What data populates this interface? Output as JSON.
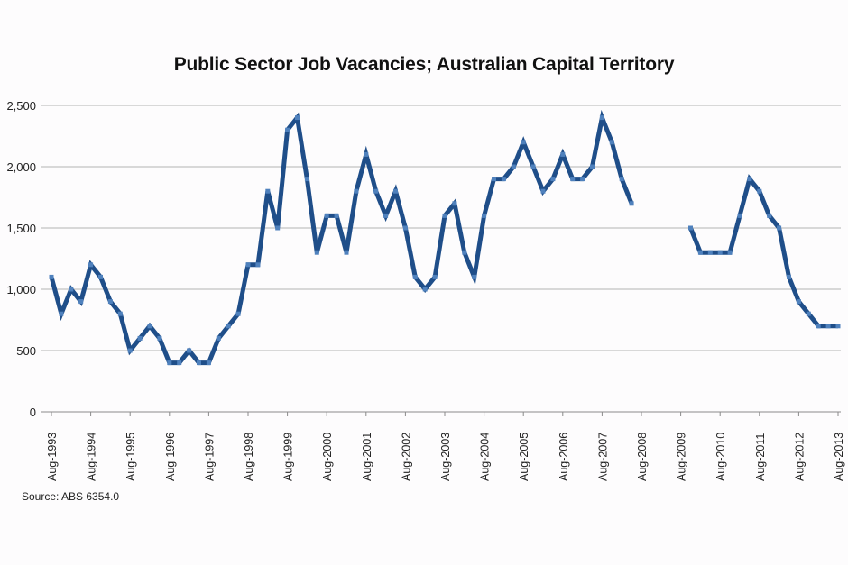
{
  "chart_data": {
    "type": "line",
    "title": "Public Sector Job Vacancies; Australian Capital Territory",
    "source": "Source: ABS 6354.0",
    "xlabel": "",
    "ylabel": "",
    "ylim": [
      0,
      2500
    ],
    "yticks": [
      "0",
      "500",
      "1,000",
      "1,500",
      "2,000",
      "2,500"
    ],
    "ytick_values": [
      0,
      500,
      1000,
      1500,
      2000,
      2500
    ],
    "xtick_labels": [
      "Aug-1993",
      "Aug-1994",
      "Aug-1995",
      "Aug-1996",
      "Aug-1997",
      "Aug-1998",
      "Aug-1999",
      "Aug-2000",
      "Aug-2001",
      "Aug-2002",
      "Aug-2003",
      "Aug-2004",
      "Aug-2005",
      "Aug-2006",
      "Aug-2007",
      "Aug-2008",
      "Aug-2009",
      "Aug-2010",
      "Aug-2011",
      "Aug-2012",
      "Aug-2013"
    ],
    "grid": true,
    "legend": null,
    "frequency": "quarterly",
    "x": [
      "Aug-1993",
      "Nov-1993",
      "Feb-1994",
      "May-1994",
      "Aug-1994",
      "Nov-1994",
      "Feb-1995",
      "May-1995",
      "Aug-1995",
      "Nov-1995",
      "Feb-1996",
      "May-1996",
      "Aug-1996",
      "Nov-1996",
      "Feb-1997",
      "May-1997",
      "Aug-1997",
      "Nov-1997",
      "Feb-1998",
      "May-1998",
      "Aug-1998",
      "Nov-1998",
      "Feb-1999",
      "May-1999",
      "Aug-1999",
      "Nov-1999",
      "Feb-2000",
      "May-2000",
      "Aug-2000",
      "Nov-2000",
      "Feb-2001",
      "May-2001",
      "Aug-2001",
      "Nov-2001",
      "Feb-2002",
      "May-2002",
      "Aug-2002",
      "Nov-2002",
      "Feb-2003",
      "May-2003",
      "Aug-2003",
      "Nov-2003",
      "Feb-2004",
      "May-2004",
      "Aug-2004",
      "Nov-2004",
      "Feb-2005",
      "May-2005",
      "Aug-2005",
      "Nov-2005",
      "Feb-2006",
      "May-2006",
      "Aug-2006",
      "Nov-2006",
      "Feb-2007",
      "May-2007",
      "Aug-2007",
      "Nov-2007",
      "Feb-2008",
      "May-2008",
      "Aug-2008",
      "Nov-2008",
      "Feb-2009",
      "May-2009",
      "Aug-2009",
      "Nov-2009",
      "Feb-2010",
      "May-2010",
      "Aug-2010",
      "Nov-2010",
      "Feb-2011",
      "May-2011",
      "Aug-2011",
      "Nov-2011",
      "Feb-2012",
      "May-2012",
      "Aug-2012",
      "Nov-2012",
      "Feb-2013",
      "May-2013",
      "Aug-2013"
    ],
    "series": [
      {
        "name": "Public Sector Job Vacancies (ACT)",
        "color": "#1f4e89",
        "marker_color": "#4f81bd",
        "values": [
          1100,
          800,
          1000,
          900,
          1200,
          1100,
          900,
          800,
          500,
          600,
          700,
          600,
          400,
          400,
          500,
          400,
          400,
          600,
          700,
          800,
          1200,
          1200,
          1800,
          1500,
          2300,
          2400,
          1900,
          1300,
          1600,
          1600,
          1300,
          1800,
          2100,
          1800,
          1600,
          1800,
          1500,
          1100,
          1000,
          1100,
          1600,
          1700,
          1300,
          1100,
          1600,
          1900,
          1900,
          2000,
          2200,
          2000,
          1800,
          1900,
          2100,
          1900,
          1900,
          2000,
          2400,
          2200,
          1900,
          1700,
          null,
          null,
          null,
          null,
          null,
          1500,
          1300,
          1300,
          1300,
          1300,
          1600,
          1900,
          1800,
          1600,
          1500,
          1100,
          900,
          800,
          700,
          700,
          700
        ]
      }
    ]
  }
}
